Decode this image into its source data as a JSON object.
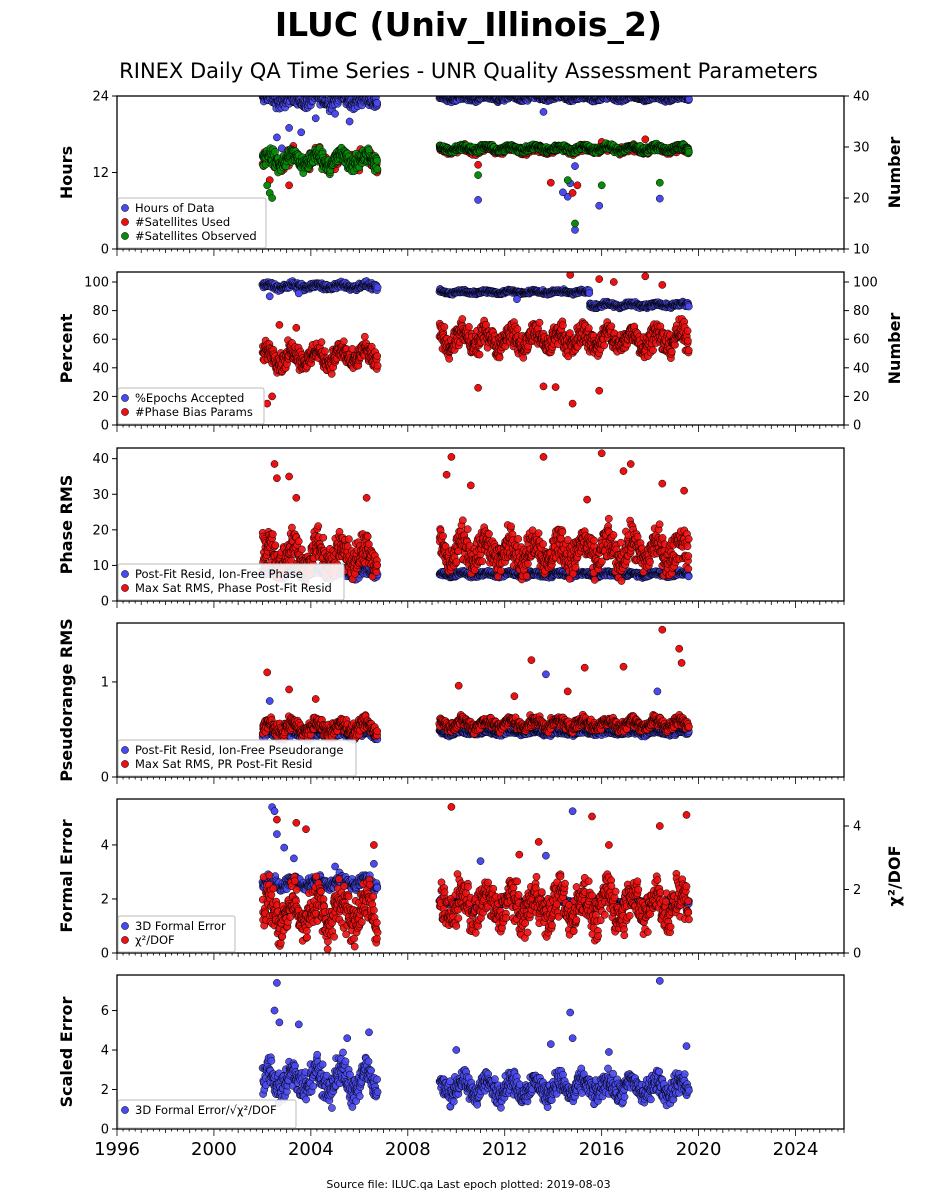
{
  "header": {
    "title": "ILUC (Univ_Illinois_2)",
    "subtitle": "RINEX Daily QA Time Series - UNR Quality Assessment Parameters"
  },
  "footer": {
    "text": "Source file: ILUC.qa Last epoch plotted: 2019-08-03"
  },
  "colors": {
    "blue": "#4a4aee",
    "red": "#ee1010",
    "green": "#0a8a0a"
  },
  "chart_data": [
    {
      "type": "scatter",
      "ylabel": "Hours",
      "ylabel_right": "Number",
      "ylim": [
        0,
        24
      ],
      "ylim_right": [
        10,
        40
      ],
      "yticks": [
        0,
        12,
        24
      ],
      "yticks_right": [
        10,
        20,
        30,
        40
      ],
      "legend": "bottom-left",
      "series": [
        {
          "name": "Hours of Data",
          "color": "blue",
          "axis": "left",
          "segments": [
            {
              "x": [
                2002.0,
                2006.75
              ],
              "base": 23.4,
              "jitter": 1.2,
              "outliers": [
                [
                  2002.6,
                  17.5
                ],
                [
                  2003.1,
                  19.0
                ],
                [
                  2003.6,
                  18.3
                ],
                [
                  2004.2,
                  20.5
                ],
                [
                  2005.0,
                  21.2
                ],
                [
                  2005.6,
                  20.0
                ],
                [
                  2002.8,
                  15.8
                ]
              ]
            },
            {
              "x": [
                2009.3,
                2019.6
              ],
              "base": 23.7,
              "jitter": 0.5,
              "outliers": [
                [
                  2010.9,
                  7.7
                ],
                [
                  2014.6,
                  8.2
                ],
                [
                  2014.9,
                  3.0
                ],
                [
                  2015.9,
                  6.8
                ],
                [
                  2018.4,
                  7.9
                ],
                [
                  2014.7,
                  10.3
                ],
                [
                  2014.9,
                  13.0
                ],
                [
                  2014.4,
                  8.9
                ],
                [
                  2013.6,
                  21.5
                ]
              ]
            }
          ]
        },
        {
          "name": "#Satellites Used",
          "color": "red",
          "axis": "right",
          "segments": [
            {
              "x": [
                2002.0,
                2006.75
              ],
              "base": 27.5,
              "jitter": 2.0,
              "outliers": [
                [
                  2002.3,
                  23.5
                ],
                [
                  2003.1,
                  22.5
                ],
                [
                  2002.5,
                  26.0
                ]
              ]
            },
            {
              "x": [
                2009.3,
                2019.6
              ],
              "base": 29.5,
              "jitter": 0.8,
              "outliers": [
                [
                  2010.9,
                  26.5
                ],
                [
                  2013.9,
                  23.0
                ],
                [
                  2014.8,
                  21.0
                ],
                [
                  2015.0,
                  22.5
                ],
                [
                  2016.0,
                  31.0
                ],
                [
                  2017.8,
                  31.5
                ]
              ]
            }
          ]
        },
        {
          "name": "#Satellites Observed",
          "color": "green",
          "axis": "right",
          "segments": [
            {
              "x": [
                2002.0,
                2006.75
              ],
              "base": 27.5,
              "jitter": 2.0,
              "outliers": [
                [
                  2002.3,
                  21.0
                ],
                [
                  2002.4,
                  20.0
                ],
                [
                  2002.2,
                  22.5
                ]
              ]
            },
            {
              "x": [
                2009.3,
                2019.6
              ],
              "base": 29.7,
              "jitter": 0.7,
              "outliers": [
                [
                  2010.9,
                  24.5
                ],
                [
                  2014.6,
                  23.5
                ],
                [
                  2014.9,
                  15.0
                ],
                [
                  2016.0,
                  22.5
                ],
                [
                  2018.4,
                  23.0
                ]
              ]
            }
          ]
        }
      ]
    },
    {
      "type": "scatter",
      "ylabel": "Percent",
      "ylabel_right": "Number",
      "ylim": [
        0,
        107
      ],
      "ylim_right": [
        0,
        107
      ],
      "yticks": [
        0,
        20,
        40,
        60,
        80,
        100
      ],
      "yticks_right": [
        0,
        20,
        40,
        60,
        80,
        100
      ],
      "legend": "bottom-left",
      "series": [
        {
          "name": "%Epochs Accepted",
          "color": "blue",
          "axis": "left",
          "segments": [
            {
              "x": [
                2002.0,
                2006.75
              ],
              "base": 97.0,
              "jitter": 2.5,
              "outliers": [
                [
                  2002.3,
                  90.0
                ],
                [
                  2003.5,
                  92.0
                ]
              ]
            },
            {
              "x": [
                2009.3,
                2015.5
              ],
              "base": 93.0,
              "jitter": 1.5,
              "outliers": [
                [
                  2012.5,
                  88.0
                ]
              ]
            },
            {
              "x": [
                2015.5,
                2019.6
              ],
              "base": 84.0,
              "jitter": 2.0,
              "outliers": []
            }
          ]
        },
        {
          "name": "#Phase Bias Params",
          "color": "red",
          "axis": "right",
          "segments": [
            {
              "x": [
                2002.0,
                2006.75
              ],
              "base": 48.0,
              "jitter": 9.0,
              "outliers": [
                [
                  2002.2,
                  15.0
                ],
                [
                  2002.4,
                  20.0
                ],
                [
                  2002.7,
                  70.0
                ],
                [
                  2003.4,
                  68.0
                ]
              ]
            },
            {
              "x": [
                2009.3,
                2019.6
              ],
              "base": 60.0,
              "jitter": 10.0,
              "outliers": [
                [
                  2010.9,
                  26.0
                ],
                [
                  2013.6,
                  27.0
                ],
                [
                  2014.1,
                  26.5
                ],
                [
                  2014.8,
                  15.0
                ],
                [
                  2015.9,
                  24.0
                ],
                [
                  2014.7,
                  105.0
                ],
                [
                  2015.9,
                  102.0
                ],
                [
                  2016.5,
                  100.0
                ],
                [
                  2017.8,
                  104.0
                ],
                [
                  2018.5,
                  98.0
                ]
              ]
            }
          ]
        }
      ]
    },
    {
      "type": "scatter",
      "ylabel": "Phase RMS",
      "ylim": [
        0,
        43
      ],
      "yticks": [
        0,
        10,
        20,
        30,
        40
      ],
      "legend": "bottom-left",
      "series": [
        {
          "name": "Post-Fit Resid, Ion-Free Phase",
          "color": "blue",
          "axis": "left",
          "segments": [
            {
              "x": [
                2002.0,
                2006.75
              ],
              "base": 8.0,
              "jitter": 1.5,
              "outliers": []
            },
            {
              "x": [
                2009.3,
                2019.6
              ],
              "base": 7.5,
              "jitter": 0.8,
              "outliers": []
            }
          ]
        },
        {
          "name": "Max Sat RMS, Phase Post-Fit Resid",
          "color": "red",
          "axis": "left",
          "segments": [
            {
              "x": [
                2002.0,
                2006.75
              ],
              "base": 13.0,
              "jitter": 6.0,
              "outliers": [
                [
                  2002.5,
                  38.5
                ],
                [
                  2002.6,
                  34.5
                ],
                [
                  2003.1,
                  35.0
                ],
                [
                  2003.4,
                  29.0
                ],
                [
                  2006.3,
                  29.0
                ]
              ]
            },
            {
              "x": [
                2009.3,
                2019.6
              ],
              "base": 14.0,
              "jitter": 6.0,
              "outliers": [
                [
                  2009.6,
                  35.5
                ],
                [
                  2009.8,
                  40.5
                ],
                [
                  2010.6,
                  32.5
                ],
                [
                  2013.6,
                  40.5
                ],
                [
                  2016.0,
                  41.5
                ],
                [
                  2016.9,
                  36.5
                ],
                [
                  2017.2,
                  38.5
                ],
                [
                  2018.5,
                  33.0
                ],
                [
                  2019.4,
                  31.0
                ],
                [
                  2015.4,
                  28.5
                ]
              ]
            }
          ]
        }
      ]
    },
    {
      "type": "scatter",
      "ylabel": "Pseudorange RMS",
      "ylim": [
        0,
        1.62
      ],
      "yticks": [
        0,
        1
      ],
      "legend": "bottom-left",
      "series": [
        {
          "name": "Post-Fit Resid, Ion-Free Pseudorange",
          "color": "blue",
          "axis": "left",
          "segments": [
            {
              "x": [
                2002.0,
                2006.75
              ],
              "base": 0.45,
              "jitter": 0.05,
              "outliers": [
                [
                  2002.3,
                  0.8
                ]
              ]
            },
            {
              "x": [
                2009.3,
                2019.6
              ],
              "base": 0.47,
              "jitter": 0.03,
              "outliers": [
                [
                  2013.7,
                  1.08
                ],
                [
                  2018.3,
                  0.9
                ]
              ]
            }
          ]
        },
        {
          "name": "Max Sat RMS, PR Post-Fit Resid",
          "color": "red",
          "axis": "left",
          "segments": [
            {
              "x": [
                2002.0,
                2006.75
              ],
              "base": 0.52,
              "jitter": 0.09,
              "outliers": [
                [
                  2002.2,
                  1.1
                ],
                [
                  2003.1,
                  0.92
                ],
                [
                  2004.2,
                  0.82
                ]
              ]
            },
            {
              "x": [
                2009.3,
                2019.6
              ],
              "base": 0.56,
              "jitter": 0.07,
              "outliers": [
                [
                  2010.1,
                  0.96
                ],
                [
                  2013.1,
                  1.23
                ],
                [
                  2015.3,
                  1.15
                ],
                [
                  2016.9,
                  1.16
                ],
                [
                  2018.5,
                  1.55
                ],
                [
                  2019.2,
                  1.35
                ],
                [
                  2019.3,
                  1.2
                ],
                [
                  2012.4,
                  0.85
                ],
                [
                  2014.6,
                  0.9
                ]
              ]
            }
          ]
        }
      ]
    },
    {
      "type": "scatter",
      "ylabel": "Formal Error",
      "ylabel_right": "χ²/DOF",
      "ylim": [
        0,
        5.7
      ],
      "ylim_right": [
        0,
        4.85
      ],
      "yticks": [
        0,
        2,
        4
      ],
      "yticks_right": [
        0,
        2,
        4
      ],
      "legend": "bottom-left",
      "series": [
        {
          "name": "3D Formal Error",
          "color": "blue",
          "axis": "left",
          "segments": [
            {
              "x": [
                2002.0,
                2006.75
              ],
              "base": 2.6,
              "jitter": 0.25,
              "outliers": [
                [
                  2002.4,
                  5.4
                ],
                [
                  2002.5,
                  5.25
                ],
                [
                  2002.6,
                  4.4
                ],
                [
                  2002.9,
                  3.9
                ],
                [
                  2003.3,
                  3.5
                ],
                [
                  2005.0,
                  3.2
                ],
                [
                  2006.6,
                  3.3
                ]
              ]
            },
            {
              "x": [
                2009.3,
                2019.6
              ],
              "base": 1.9,
              "jitter": 0.1,
              "outliers": [
                [
                  2014.8,
                  5.25
                ],
                [
                  2013.7,
                  3.6
                ],
                [
                  2011.0,
                  3.4
                ]
              ]
            }
          ]
        },
        {
          "name": "χ²/DOF",
          "color": "red",
          "axis": "right",
          "segments": [
            {
              "x": [
                2002.0,
                2006.75
              ],
              "base": 1.3,
              "jitter": 0.9,
              "outliers": [
                [
                  2002.6,
                  4.2
                ],
                [
                  2003.4,
                  4.1
                ],
                [
                  2003.8,
                  3.9
                ],
                [
                  2006.6,
                  3.4
                ]
              ]
            },
            {
              "x": [
                2009.3,
                2019.6
              ],
              "base": 1.5,
              "jitter": 0.8,
              "outliers": [
                [
                  2009.8,
                  4.6
                ],
                [
                  2013.4,
                  3.5
                ],
                [
                  2015.6,
                  4.3
                ],
                [
                  2016.3,
                  3.4
                ],
                [
                  2018.4,
                  4.0
                ],
                [
                  2019.5,
                  4.35
                ],
                [
                  2012.6,
                  3.1
                ]
              ]
            }
          ]
        }
      ]
    },
    {
      "type": "scatter",
      "ylabel": "Scaled Error",
      "ylim": [
        0,
        7.8
      ],
      "yticks": [
        0,
        2,
        4,
        6
      ],
      "legend": "bottom-left",
      "xlim": [
        1996,
        2026
      ],
      "xticks": [
        "1996",
        "2000",
        "2004",
        "2008",
        "2012",
        "2016",
        "2020",
        "2024"
      ],
      "series": [
        {
          "name": "3D Formal Error/√χ²/DOF",
          "color": "blue",
          "axis": "left",
          "segments": [
            {
              "x": [
                2002.0,
                2006.75
              ],
              "base": 2.5,
              "jitter": 1.0,
              "outliers": [
                [
                  2002.6,
                  7.4
                ],
                [
                  2002.5,
                  6.0
                ],
                [
                  2002.7,
                  5.4
                ],
                [
                  2003.5,
                  5.3
                ],
                [
                  2005.5,
                  4.6
                ],
                [
                  2006.4,
                  4.9
                ]
              ]
            },
            {
              "x": [
                2009.3,
                2019.6
              ],
              "base": 2.1,
              "jitter": 0.7,
              "outliers": [
                [
                  2018.4,
                  7.5
                ],
                [
                  2014.7,
                  5.9
                ],
                [
                  2014.8,
                  4.6
                ],
                [
                  2010.0,
                  4.0
                ],
                [
                  2019.5,
                  4.2
                ],
                [
                  2013.9,
                  4.3
                ],
                [
                  2016.3,
                  3.9
                ]
              ]
            }
          ]
        }
      ]
    }
  ]
}
